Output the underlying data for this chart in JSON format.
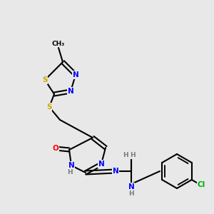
{
  "bg_color": "#e8e8e8",
  "atom_colors": {
    "C": "#000000",
    "N": "#0000ff",
    "O": "#ff0000",
    "S": "#ccaa00",
    "Cl": "#00aa00",
    "H": "#7a7a7a"
  },
  "bond_color": "#000000",
  "bond_width": 1.5,
  "font_size_atom": 7.5,
  "font_size_small": 6.5
}
